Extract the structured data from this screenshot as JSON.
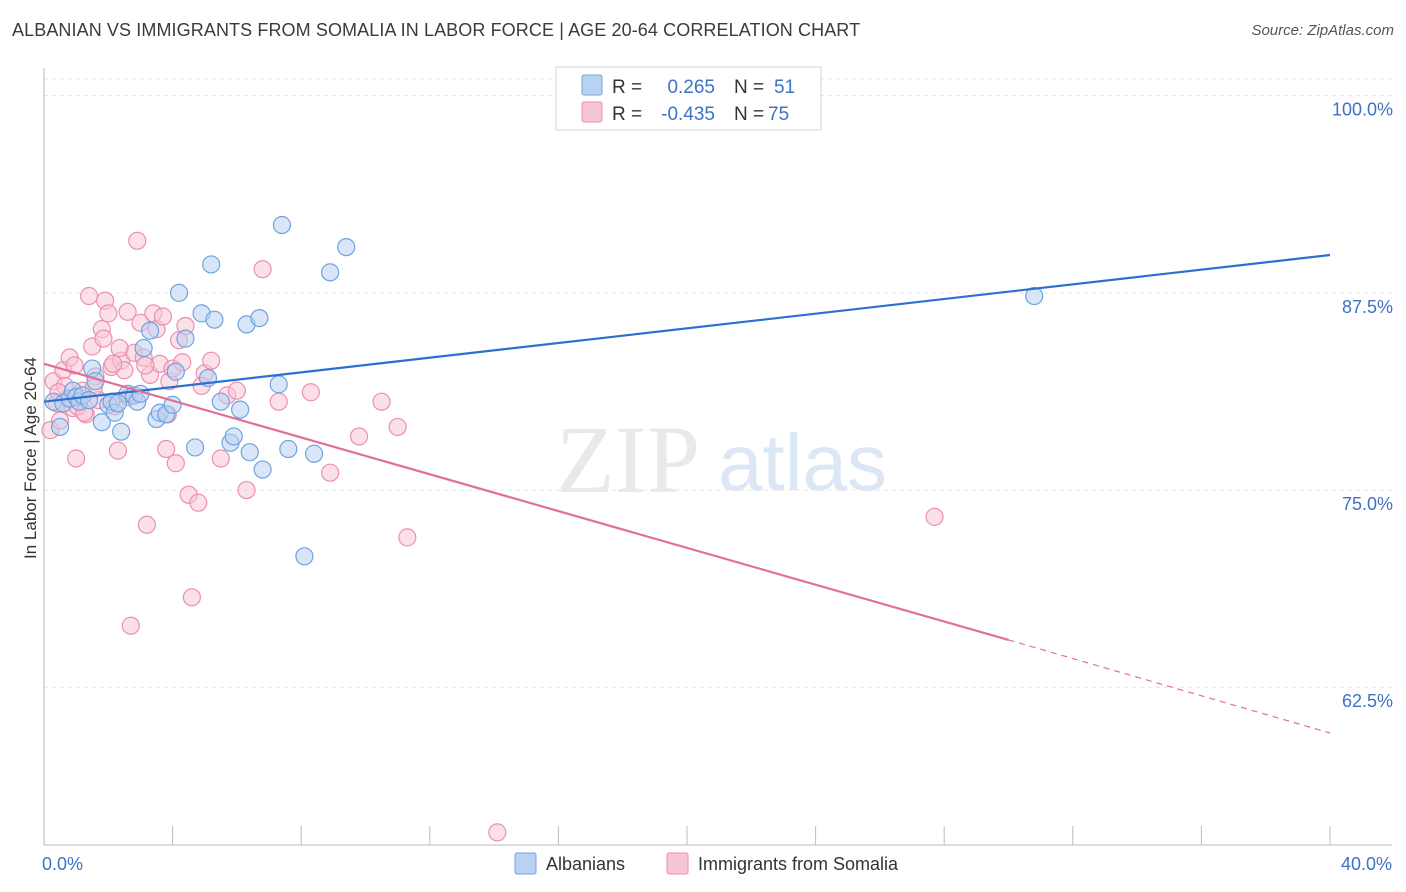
{
  "title": "ALBANIAN VS IMMIGRANTS FROM SOMALIA IN LABOR FORCE | AGE 20-64 CORRELATION CHART",
  "source": "Source: ZipAtlas.com",
  "watermark": {
    "zip": "ZIP",
    "atlas": "atlas"
  },
  "colors": {
    "albanians": "#6fa3e0",
    "albanians_fill": "#b9d2f1",
    "albanians_line": "#2b6fd0",
    "somalia": "#ec8fb0",
    "somalia_fill": "#f7c6d6",
    "somalia_line": "#e0709a",
    "tick_text": "#3d72c4"
  },
  "legend": {
    "rows": [
      {
        "r_label": "R =",
        "r_value": "0.265",
        "n_label": "N =",
        "n_value": "51"
      },
      {
        "r_label": "R =",
        "r_value": "-0.435",
        "n_label": "N =",
        "n_value": "75"
      }
    ]
  },
  "chart_data": {
    "type": "scatter",
    "title": "ALBANIAN VS IMMIGRANTS FROM SOMALIA IN LABOR FORCE | AGE 20-64 CORRELATION CHART",
    "xlabel": "",
    "ylabel": "In Labor Force | Age 20-64",
    "xlim": [
      0,
      40
    ],
    "ylim": [
      52.5,
      101.5
    ],
    "x_tick_labels": [
      "0.0%",
      "40.0%"
    ],
    "y_ticks": [
      62.5,
      75.0,
      87.5,
      100.0
    ],
    "y_tick_labels": [
      "62.5%",
      "75.0%",
      "87.5%",
      "100.0%"
    ],
    "grid": true,
    "series": [
      {
        "name": "Albanians",
        "points": [
          [
            0.3,
            80.6
          ],
          [
            0.5,
            79.0
          ],
          [
            0.6,
            80.5
          ],
          [
            0.8,
            80.8
          ],
          [
            0.9,
            81.3
          ],
          [
            1.0,
            80.9
          ],
          [
            1.1,
            80.6
          ],
          [
            1.2,
            81.0
          ],
          [
            1.5,
            82.7
          ],
          [
            1.6,
            81.9
          ],
          [
            1.8,
            79.3
          ],
          [
            2.0,
            80.4
          ],
          [
            2.1,
            80.6
          ],
          [
            2.2,
            79.9
          ],
          [
            2.4,
            78.7
          ],
          [
            2.6,
            81.1
          ],
          [
            2.8,
            81.0
          ],
          [
            2.9,
            80.6
          ],
          [
            3.1,
            84.0
          ],
          [
            3.3,
            85.1
          ],
          [
            3.5,
            79.5
          ],
          [
            3.6,
            79.9
          ],
          [
            3.8,
            79.8
          ],
          [
            4.0,
            80.4
          ],
          [
            4.1,
            82.5
          ],
          [
            4.2,
            87.5
          ],
          [
            4.4,
            84.6
          ],
          [
            4.7,
            77.7
          ],
          [
            4.9,
            86.2
          ],
          [
            5.1,
            82.1
          ],
          [
            5.2,
            89.3
          ],
          [
            5.3,
            85.8
          ],
          [
            5.5,
            80.6
          ],
          [
            5.8,
            78.0
          ],
          [
            5.9,
            78.4
          ],
          [
            6.1,
            80.1
          ],
          [
            6.3,
            85.5
          ],
          [
            6.4,
            77.4
          ],
          [
            6.7,
            85.9
          ],
          [
            6.8,
            76.3
          ],
          [
            7.3,
            81.7
          ],
          [
            7.4,
            91.8
          ],
          [
            7.6,
            77.6
          ],
          [
            8.1,
            70.8
          ],
          [
            8.4,
            77.3
          ],
          [
            8.9,
            88.8
          ],
          [
            9.4,
            90.4
          ],
          [
            2.3,
            80.5
          ],
          [
            3.0,
            81.1
          ],
          [
            1.4,
            80.7
          ],
          [
            30.8,
            87.3
          ]
        ]
      },
      {
        "name": "Immigrants from Somalia",
        "points": [
          [
            0.2,
            78.8
          ],
          [
            0.3,
            81.9
          ],
          [
            0.4,
            80.5
          ],
          [
            0.5,
            79.4
          ],
          [
            0.6,
            82.6
          ],
          [
            0.7,
            80.8
          ],
          [
            0.8,
            83.4
          ],
          [
            0.9,
            80.2
          ],
          [
            1.0,
            77.0
          ],
          [
            1.1,
            80.9
          ],
          [
            1.2,
            81.3
          ],
          [
            1.3,
            79.8
          ],
          [
            1.4,
            87.3
          ],
          [
            1.5,
            84.1
          ],
          [
            1.6,
            82.2
          ],
          [
            1.7,
            80.7
          ],
          [
            1.8,
            85.2
          ],
          [
            1.9,
            87.0
          ],
          [
            2.0,
            86.2
          ],
          [
            2.1,
            82.8
          ],
          [
            2.2,
            80.3
          ],
          [
            2.3,
            77.5
          ],
          [
            2.4,
            83.2
          ],
          [
            2.5,
            82.6
          ],
          [
            2.6,
            86.3
          ],
          [
            2.7,
            66.4
          ],
          [
            2.8,
            83.7
          ],
          [
            2.9,
            90.8
          ],
          [
            3.0,
            85.6
          ],
          [
            3.1,
            83.4
          ],
          [
            3.2,
            72.8
          ],
          [
            3.3,
            82.3
          ],
          [
            3.4,
            86.2
          ],
          [
            3.5,
            85.2
          ],
          [
            3.6,
            83.0
          ],
          [
            3.7,
            86.0
          ],
          [
            3.8,
            77.6
          ],
          [
            3.9,
            81.9
          ],
          [
            4.0,
            82.7
          ],
          [
            4.1,
            76.7
          ],
          [
            4.2,
            84.5
          ],
          [
            4.3,
            83.1
          ],
          [
            4.4,
            85.4
          ],
          [
            4.5,
            74.7
          ],
          [
            4.6,
            68.2
          ],
          [
            4.8,
            74.2
          ],
          [
            5.0,
            82.4
          ],
          [
            5.2,
            83.2
          ],
          [
            5.5,
            77.0
          ],
          [
            5.7,
            81.0
          ],
          [
            6.0,
            81.3
          ],
          [
            6.3,
            75.0
          ],
          [
            6.8,
            89.0
          ],
          [
            7.3,
            80.6
          ],
          [
            8.3,
            81.2
          ],
          [
            8.9,
            76.1
          ],
          [
            9.8,
            78.4
          ],
          [
            10.5,
            80.6
          ],
          [
            11.0,
            79.0
          ],
          [
            11.3,
            72.0
          ],
          [
            14.1,
            53.3
          ],
          [
            27.7,
            73.3
          ],
          [
            1.05,
            80.3
          ],
          [
            1.55,
            81.5
          ],
          [
            2.15,
            83.0
          ],
          [
            2.65,
            80.9
          ],
          [
            3.15,
            82.9
          ],
          [
            3.85,
            79.8
          ],
          [
            0.95,
            82.9
          ],
          [
            0.65,
            81.6
          ],
          [
            0.45,
            81.2
          ],
          [
            1.25,
            79.9
          ],
          [
            1.85,
            84.6
          ],
          [
            4.9,
            81.6
          ],
          [
            2.35,
            84.0
          ]
        ]
      }
    ],
    "trendlines": [
      {
        "series": "Albanians",
        "x": [
          0,
          40
        ],
        "y": [
          80.6,
          89.9
        ],
        "style": "solid"
      },
      {
        "series": "Immigrants from Somalia",
        "x": [
          0,
          30
        ],
        "y": [
          83.0,
          65.5
        ],
        "style": "solid"
      },
      {
        "series": "Immigrants from Somalia",
        "x": [
          30,
          40
        ],
        "y": [
          65.5,
          59.6
        ],
        "style": "dashed"
      }
    ],
    "legend_position": "top-center"
  }
}
